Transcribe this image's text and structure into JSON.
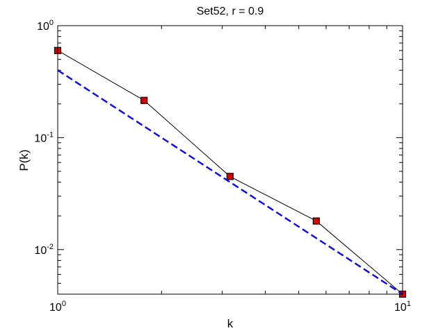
{
  "chart_data": {
    "type": "line",
    "title": "Set52, r = 0.9",
    "xlabel": "k",
    "ylabel": "P(k)",
    "xscale": "log",
    "yscale": "log",
    "xlim": [
      1,
      10
    ],
    "ylim": [
      0.004,
      1
    ],
    "grid": false,
    "xticks": [
      {
        "value": 1,
        "base": "10",
        "exp": "0"
      },
      {
        "value": 10,
        "base": "10",
        "exp": "1"
      }
    ],
    "yticks": [
      {
        "value": 0.01,
        "base": "10",
        "exp": "-2"
      },
      {
        "value": 0.1,
        "base": "10",
        "exp": "-1"
      },
      {
        "value": 1,
        "base": "10",
        "exp": "0"
      }
    ],
    "series": [
      {
        "style": "solid-with-square-markers",
        "line_color": "#000000",
        "marker_color": "#dd0000",
        "x": [
          1,
          1.78,
          3.16,
          5.62,
          10
        ],
        "y": [
          0.6,
          0.215,
          0.045,
          0.018,
          0.004
        ]
      },
      {
        "style": "dashed",
        "line_color": "#1010d0",
        "x": [
          1,
          10
        ],
        "y": [
          0.4,
          0.004
        ]
      }
    ]
  }
}
